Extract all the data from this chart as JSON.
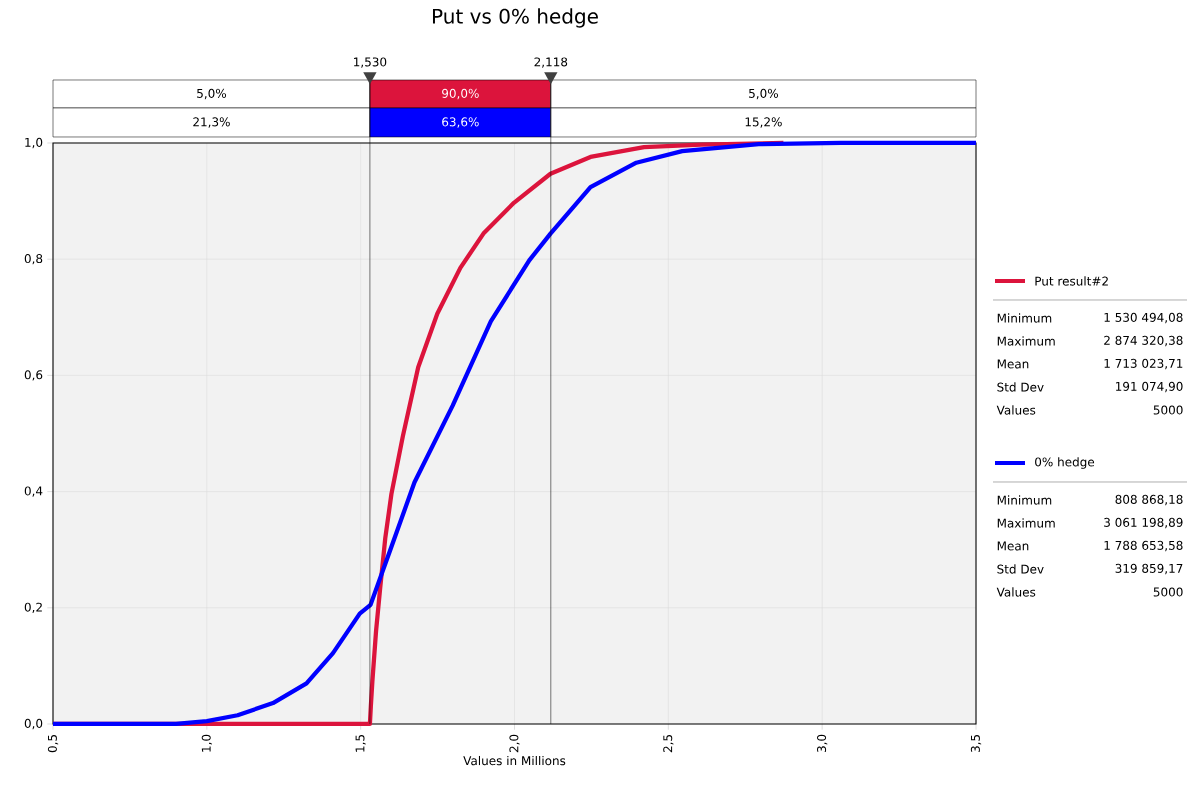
{
  "chart_data": {
    "type": "line",
    "title": "Put vs 0% hedge",
    "xlabel": "Values in Millions",
    "xlim": [
      0.5,
      3.5
    ],
    "ylim": [
      0,
      1
    ],
    "xticks": [
      {
        "value": 0.5,
        "label": "0,5"
      },
      {
        "value": 1.0,
        "label": "1,0"
      },
      {
        "value": 1.5,
        "label": "1,5"
      },
      {
        "value": 2.0,
        "label": "2,0"
      },
      {
        "value": 2.5,
        "label": "2,5"
      },
      {
        "value": 3.0,
        "label": "3,0"
      },
      {
        "value": 3.5,
        "label": "3,5"
      }
    ],
    "yticks": [
      {
        "value": 0,
        "label": "0,0"
      },
      {
        "value": 0.2,
        "label": "0,2"
      },
      {
        "value": 0.4,
        "label": "0,4"
      },
      {
        "value": 0.6,
        "label": "0,6"
      },
      {
        "value": 0.8,
        "label": "0,8"
      },
      {
        "value": 1.0,
        "label": "1,0"
      }
    ],
    "grid": true,
    "legend": "right",
    "series": [
      {
        "name": "Put result#2",
        "color": "#dc143c",
        "x": [
          0.5,
          1.53,
          1.533,
          1.538,
          1.55,
          1.563,
          1.58,
          1.6,
          1.637,
          1.687,
          1.749,
          1.824,
          1.899,
          1.998,
          2.117,
          2.247,
          2.421,
          2.607,
          2.874
        ],
        "values": [
          0,
          0,
          0.03,
          0.073,
          0.16,
          0.232,
          0.32,
          0.396,
          0.495,
          0.614,
          0.706,
          0.785,
          0.844,
          0.897,
          0.947,
          0.976,
          0.993,
          0.997,
          1.0
        ]
      },
      {
        "name": "0% hedge",
        "color": "#0000ff",
        "x": [
          0.5,
          0.9,
          1.0,
          1.1,
          1.215,
          1.324,
          1.41,
          1.497,
          1.532,
          1.6,
          1.675,
          1.799,
          1.923,
          2.048,
          2.117,
          2.247,
          2.396,
          2.545,
          2.794,
          3.061,
          3.5
        ],
        "values": [
          0,
          0,
          0.005,
          0.015,
          0.036,
          0.07,
          0.122,
          0.19,
          0.205,
          0.305,
          0.416,
          0.548,
          0.693,
          0.798,
          0.844,
          0.924,
          0.966,
          0.986,
          0.998,
          1.0,
          1.0
        ]
      }
    ],
    "ref_lines": [
      {
        "axis": "x",
        "value": 1.53,
        "label": "1,530"
      },
      {
        "axis": "x",
        "value": 2.118,
        "label": "2,118"
      }
    ],
    "annotations": [
      "5,0%",
      "90,0%",
      "5,0%",
      "21,3%",
      "63,6%",
      "15,2%",
      "Minimum",
      "1 530 494,08",
      "Maximum",
      "2 874 320,38",
      "Mean",
      "1 713 023,71",
      "Std Dev",
      "191 074,90",
      "Values",
      "5000",
      "Minimum",
      "808 868,18",
      "Maximum",
      "3 061 198,89",
      "Mean",
      "1 788 653,58",
      "Std Dev",
      "319 859,17",
      "Values",
      "5000"
    ]
  }
}
